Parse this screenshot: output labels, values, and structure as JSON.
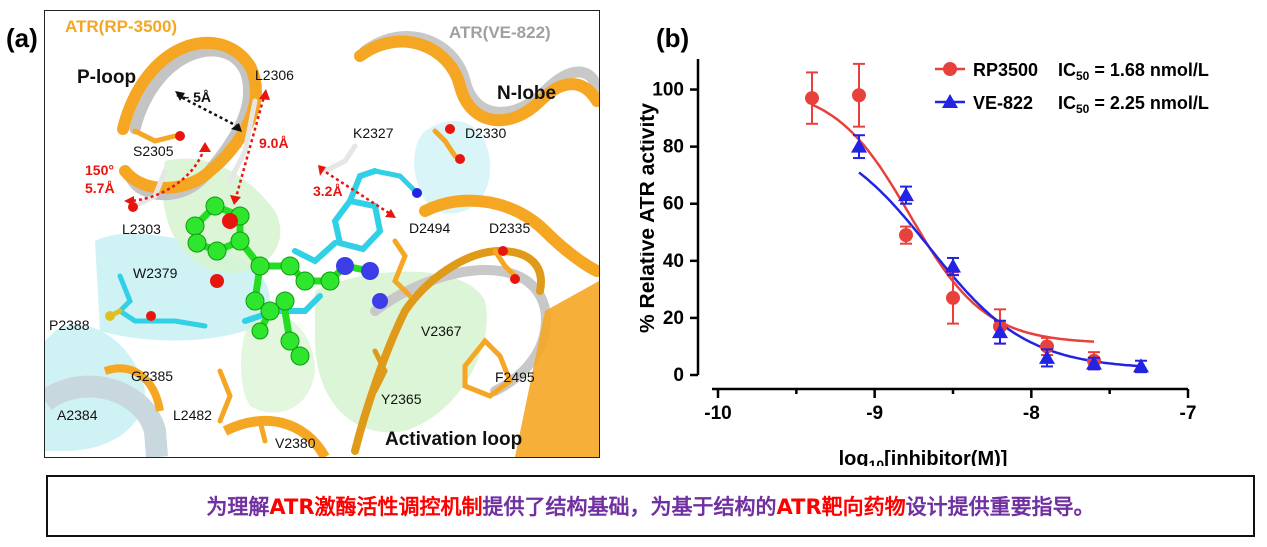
{
  "panel_a": {
    "tag": "(a)",
    "title_rp": "ATR(RP-3500)",
    "title_ve": "ATR(VE-822)",
    "region_labels": {
      "ploop": "P-loop",
      "nlobe": "N-lobe",
      "activation": "Activation loop"
    },
    "residues": [
      "L2306",
      "S2305",
      "L2303",
      "K2327",
      "D2330",
      "D2494",
      "D2335",
      "W2379",
      "P2388",
      "G2385",
      "A2384",
      "L2482",
      "V2380",
      "Y2365",
      "V2367",
      "F2495"
    ],
    "measurements": {
      "dist1": "~ 5Å",
      "dist2": "9.0Å",
      "angle": "150°",
      "dist3": "5.7Å",
      "dist4": "3.2Å"
    },
    "colors": {
      "rp": "#f5a623",
      "ve": "#a8a8a8",
      "ligand_rp": "#22dd22",
      "ligand_ve": "#30d0e6"
    }
  },
  "panel_b": {
    "tag": "(b)"
  },
  "chart_data": {
    "type": "scatter",
    "xlabel": "log10[inhibitor(M)]",
    "ylabel": "% Relative ATR activity",
    "xlim": [
      -10,
      -7
    ],
    "ylim": [
      0,
      110
    ],
    "xticks": [
      "-10",
      "-9",
      "-8",
      "-7"
    ],
    "yticks": [
      "0",
      "20",
      "40",
      "60",
      "80",
      "100"
    ],
    "legend_position": "top-right",
    "series": [
      {
        "name": "RP3500",
        "ic50_label": "IC50 = 1.68 nmol/L",
        "color": "#e8413c",
        "marker": "circle",
        "x": [
          -9.4,
          -9.1,
          -8.8,
          -8.5,
          -8.2,
          -7.9,
          -7.6
        ],
        "y": [
          97,
          98,
          49,
          27,
          17,
          10,
          5
        ],
        "err": [
          9,
          11,
          3,
          9,
          6,
          3,
          3
        ],
        "fit": {
          "top": 101,
          "bottom": 11,
          "logIC50": -8.775,
          "hill": -1.8,
          "x_range": [
            -9.4,
            -7.6
          ]
        }
      },
      {
        "name": "VE-822",
        "ic50_label": "IC50 = 2.25 nmol/L",
        "color": "#2323e3",
        "marker": "triangle",
        "x": [
          -9.1,
          -8.8,
          -8.5,
          -8.2,
          -7.9,
          -7.6,
          -7.3
        ],
        "y": [
          80,
          63,
          38,
          15,
          6,
          4,
          3
        ],
        "err": [
          4,
          3,
          3,
          4,
          3,
          2,
          2
        ],
        "fit": {
          "top": 87,
          "bottom": 2,
          "logIC50": -8.648,
          "hill": -1.4,
          "x_range": [
            -9.1,
            -7.3
          ]
        }
      }
    ]
  },
  "banner": {
    "segments": [
      {
        "text": "为理解",
        "color": "purple"
      },
      {
        "text": "ATR激酶活性调控机制",
        "color": "red"
      },
      {
        "text": "提供了结构基础，为基于结构的",
        "color": "purple"
      },
      {
        "text": "ATR靶向药物",
        "color": "red"
      },
      {
        "text": "设计提供重要指导。",
        "color": "purple"
      }
    ]
  }
}
